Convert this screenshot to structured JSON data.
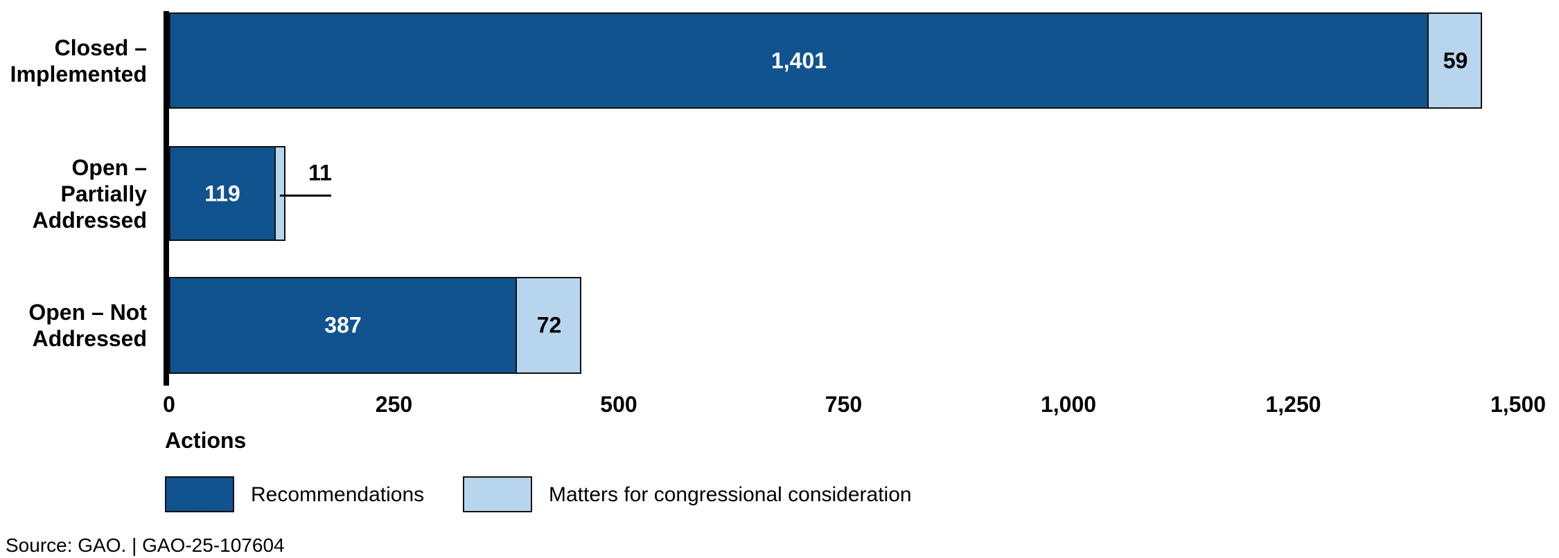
{
  "figure": {
    "x_axis_title": "Actions",
    "source_line": "Source: GAO.  |  GAO-25-107604"
  },
  "legend": {
    "items": [
      {
        "label": "Recommendations",
        "color": "#10538f"
      },
      {
        "label": "Matters for congressional consideration",
        "color": "#b8d5ee"
      }
    ]
  },
  "chart_data": {
    "type": "bar",
    "orientation": "horizontal",
    "stacked": true,
    "title": "",
    "xlabel": "Actions",
    "ylabel": "",
    "xlim": [
      0,
      1500
    ],
    "grid": false,
    "legend_position": "bottom",
    "categories": [
      "Closed – Implemented",
      "Open – Partially Addressed",
      "Open – Not Addressed"
    ],
    "category_display_lines": [
      [
        "Closed –",
        "Implemented"
      ],
      [
        "Open –",
        "Partially",
        "Addressed"
      ],
      [
        "Open – Not",
        "Addressed"
      ]
    ],
    "series": [
      {
        "name": "Recommendations",
        "color": "#10538f",
        "label_color": "#ffffff",
        "values": [
          1401,
          119,
          387
        ],
        "value_labels": [
          "1,401",
          "119",
          "387"
        ]
      },
      {
        "name": "Matters for congressional consideration",
        "color": "#b8d5ee",
        "label_color": "#000000",
        "values": [
          59,
          11,
          72
        ],
        "value_labels": [
          "59",
          "11",
          "72"
        ]
      }
    ],
    "x_ticks": [
      0,
      250,
      500,
      750,
      1000,
      1250,
      1500
    ],
    "x_tick_labels": [
      "0",
      "250",
      "500",
      "750",
      "1,000",
      "1,250",
      "1,500"
    ]
  }
}
